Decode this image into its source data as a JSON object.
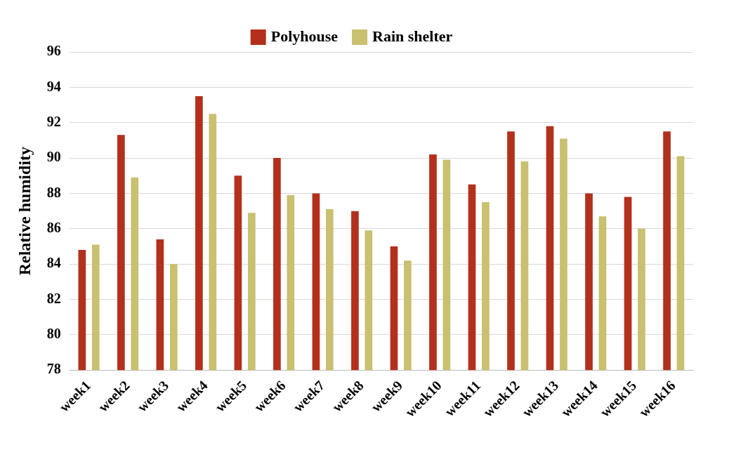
{
  "chart_data": {
    "type": "bar",
    "ylabel": "Relative humidity",
    "categories": [
      "week1",
      "week2",
      "week3",
      "week4",
      "week5",
      "week6",
      "week7",
      "week8",
      "week9",
      "week10",
      "week11",
      "week12",
      "week13",
      "week14",
      "week15",
      "week16"
    ],
    "series": [
      {
        "name": "Polyhouse",
        "color": "#b3301c",
        "values": [
          84.8,
          91.3,
          85.4,
          93.5,
          89.0,
          90.0,
          88.0,
          87.0,
          85.0,
          90.2,
          88.5,
          91.5,
          91.8,
          88.0,
          87.8,
          91.5
        ]
      },
      {
        "name": "Rain shelter",
        "color": "#c9c070",
        "values": [
          85.1,
          88.9,
          84.0,
          92.5,
          86.9,
          87.9,
          87.1,
          85.9,
          84.2,
          89.9,
          87.5,
          89.8,
          91.1,
          86.7,
          86.0,
          90.1
        ]
      }
    ],
    "ylim": [
      78,
      96
    ],
    "yticks": [
      78,
      80,
      82,
      84,
      86,
      88,
      90,
      92,
      94,
      96
    ],
    "grid": "y",
    "legend": "top"
  }
}
